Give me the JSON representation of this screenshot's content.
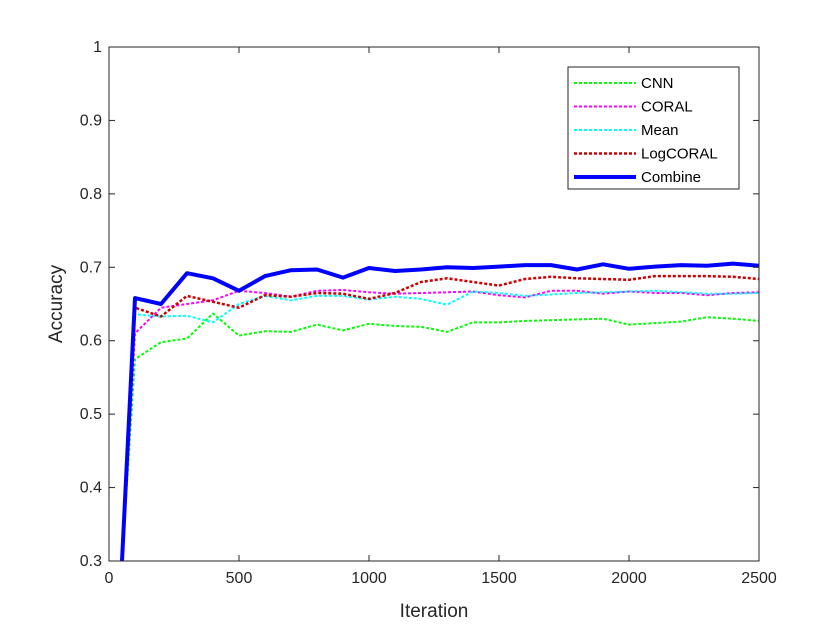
{
  "chart_data": {
    "type": "line",
    "title": "",
    "xlabel": "Iteration",
    "ylabel": "Accuracy",
    "xlim": [
      0,
      2500
    ],
    "ylim": [
      0.3,
      1
    ],
    "xticks": [
      0,
      500,
      1000,
      1500,
      2000,
      2500
    ],
    "xtick_labels": [
      "0",
      "500",
      "1000",
      "1500",
      "2000",
      "2500"
    ],
    "yticks": [
      0.3,
      0.4,
      0.5,
      0.6,
      0.7,
      0.8,
      0.9,
      1
    ],
    "ytick_labels": [
      "0.3",
      "0.4",
      "0.5",
      "0.6",
      "0.7",
      "0.8",
      "0.9",
      "1"
    ],
    "grid": false,
    "legend_position": "top-right",
    "x": [
      50,
      100,
      200,
      300,
      400,
      500,
      600,
      700,
      800,
      900,
      1000,
      1100,
      1200,
      1300,
      1400,
      1500,
      1600,
      1700,
      1800,
      1900,
      2000,
      2100,
      2200,
      2300,
      2400,
      2500
    ],
    "series": [
      {
        "name": "CNN",
        "color": "#00ff00",
        "style": "dotted",
        "width": 2,
        "values": [
          0.3,
          0.575,
          0.598,
          0.603,
          0.637,
          0.607,
          0.613,
          0.612,
          0.622,
          0.614,
          0.623,
          0.62,
          0.619,
          0.612,
          0.625,
          0.625,
          0.627,
          0.628,
          0.629,
          0.63,
          0.622,
          0.624,
          0.626,
          0.632,
          0.63,
          0.627
        ]
      },
      {
        "name": "CORAL",
        "color": "#ff00ff",
        "style": "dotted",
        "width": 2,
        "values": [
          0.3,
          0.61,
          0.645,
          0.65,
          0.655,
          0.668,
          0.665,
          0.66,
          0.668,
          0.669,
          0.666,
          0.664,
          0.665,
          0.666,
          0.667,
          0.662,
          0.659,
          0.668,
          0.668,
          0.664,
          0.667,
          0.665,
          0.665,
          0.662,
          0.665,
          0.666
        ]
      },
      {
        "name": "Mean",
        "color": "#00ffff",
        "style": "dotted",
        "width": 2,
        "values": [
          0.3,
          0.636,
          0.633,
          0.634,
          0.625,
          0.65,
          0.661,
          0.655,
          0.661,
          0.661,
          0.656,
          0.66,
          0.657,
          0.649,
          0.667,
          0.665,
          0.661,
          0.663,
          0.665,
          0.666,
          0.667,
          0.668,
          0.666,
          0.664,
          0.664,
          0.665
        ]
      },
      {
        "name": "LogCORAL",
        "color": "#cc0000",
        "style": "dotted",
        "width": 2.5,
        "values": [
          0.3,
          0.645,
          0.633,
          0.661,
          0.653,
          0.645,
          0.662,
          0.66,
          0.665,
          0.664,
          0.657,
          0.665,
          0.68,
          0.685,
          0.68,
          0.675,
          0.684,
          0.687,
          0.685,
          0.684,
          0.683,
          0.688,
          0.688,
          0.688,
          0.687,
          0.684
        ]
      },
      {
        "name": "Combine",
        "color": "#0000ff",
        "style": "solid",
        "width": 4,
        "values": [
          0.3,
          0.658,
          0.65,
          0.692,
          0.685,
          0.668,
          0.688,
          0.696,
          0.697,
          0.686,
          0.699,
          0.695,
          0.697,
          0.7,
          0.699,
          0.701,
          0.703,
          0.703,
          0.697,
          0.704,
          0.698,
          0.701,
          0.703,
          0.702,
          0.705,
          0.702
        ]
      }
    ]
  }
}
